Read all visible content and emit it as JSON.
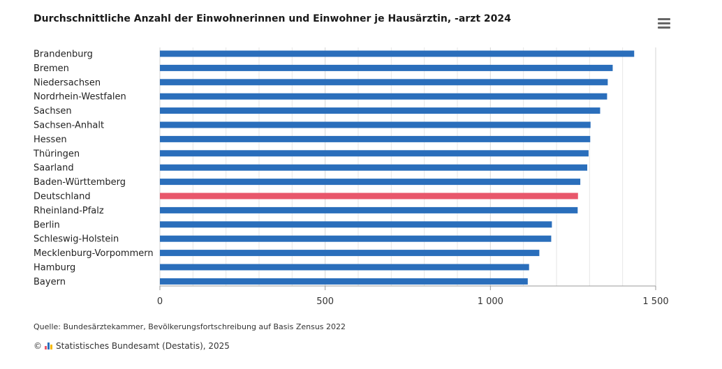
{
  "menu": {
    "icon": "hamburger-menu-icon"
  },
  "source": "Quelle: Bundesärztekammer, Bevölkerungsfortschreibung auf Basis Zensus 2022",
  "copyright": {
    "symbol": "©",
    "text": "Statistisches Bundesamt (Destatis), 2025"
  },
  "colors": {
    "bar": "#2a6ebb",
    "highlight": "#e8576b",
    "grid": "#e6e6e6"
  },
  "chart_data": {
    "type": "bar",
    "orientation": "horizontal",
    "title": "Durchschnittliche Anzahl der Einwohnerinnen und Einwohner je Hausärztin, -arzt 2024",
    "categories": [
      "Brandenburg",
      "Bremen",
      "Niedersachsen",
      "Nordrhein-Westfalen",
      "Sachsen",
      "Sachsen-Anhalt",
      "Hessen",
      "Thüringen",
      "Saarland",
      "Baden-Württemberg",
      "Deutschland",
      "Rheinland-Pfalz",
      "Berlin",
      "Schleswig-Holstein",
      "Mecklenburg-Vorpommern",
      "Hamburg",
      "Bayern"
    ],
    "values": [
      1435,
      1370,
      1355,
      1353,
      1332,
      1303,
      1302,
      1297,
      1293,
      1272,
      1265,
      1264,
      1186,
      1184,
      1148,
      1117,
      1113
    ],
    "highlight": "Deutschland",
    "xlim": [
      0,
      1500
    ],
    "ticks": [
      0,
      500,
      1000,
      1500
    ],
    "tick_labels": [
      "0",
      "500",
      "1 000",
      "1 500"
    ],
    "xlabel": "",
    "ylabel": ""
  }
}
